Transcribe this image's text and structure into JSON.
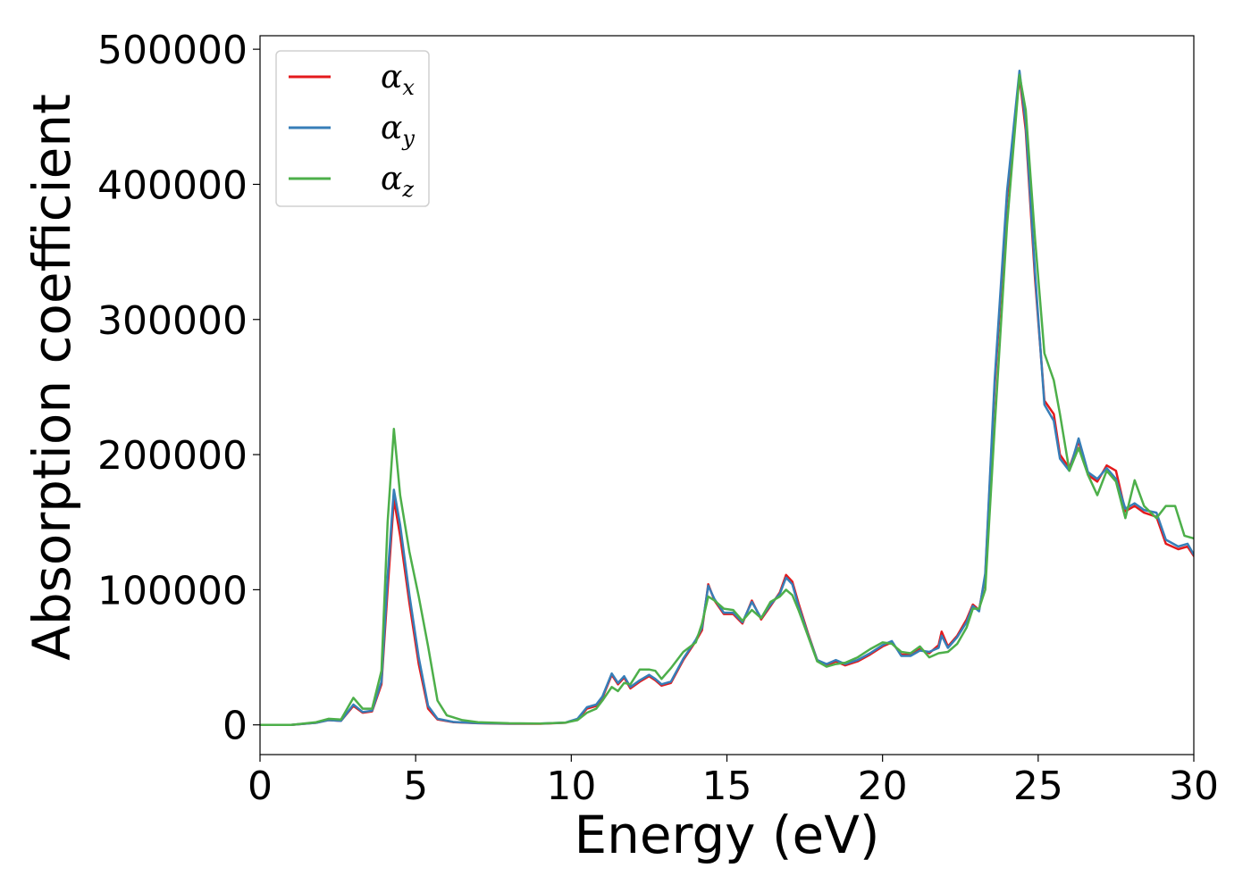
{
  "chart_data": {
    "type": "line",
    "title": "",
    "xlabel": "Energy (eV)",
    "ylabel": "Absorption coefficient",
    "xlim": [
      0,
      30
    ],
    "ylim": [
      -22000,
      510000
    ],
    "xticks": [
      0,
      5,
      10,
      15,
      20,
      25,
      30
    ],
    "yticks": [
      0,
      100000,
      200000,
      300000,
      400000,
      500000
    ],
    "grid": false,
    "legend": "top-left",
    "series": [
      {
        "name": "α",
        "subscript": "x",
        "color": "#e41a1c",
        "points": [
          [
            0,
            0
          ],
          [
            1,
            0
          ],
          [
            1.8,
            1500
          ],
          [
            2.2,
            3500
          ],
          [
            2.6,
            3000
          ],
          [
            3.0,
            14000
          ],
          [
            3.3,
            9000
          ],
          [
            3.6,
            10000
          ],
          [
            3.9,
            30000
          ],
          [
            4.1,
            100000
          ],
          [
            4.3,
            167000
          ],
          [
            4.5,
            140000
          ],
          [
            4.8,
            90000
          ],
          [
            5.1,
            45000
          ],
          [
            5.4,
            12000
          ],
          [
            5.7,
            4000
          ],
          [
            6.2,
            2000
          ],
          [
            7,
            1200
          ],
          [
            8,
            800
          ],
          [
            9,
            800
          ],
          [
            9.8,
            1500
          ],
          [
            10.2,
            4000
          ],
          [
            10.5,
            12000
          ],
          [
            10.8,
            14000
          ],
          [
            11.0,
            20000
          ],
          [
            11.3,
            37000
          ],
          [
            11.5,
            30000
          ],
          [
            11.7,
            35000
          ],
          [
            11.9,
            27000
          ],
          [
            12.2,
            32000
          ],
          [
            12.5,
            36000
          ],
          [
            12.7,
            33000
          ],
          [
            12.9,
            29000
          ],
          [
            13.2,
            31000
          ],
          [
            13.6,
            48000
          ],
          [
            14.0,
            62000
          ],
          [
            14.2,
            70000
          ],
          [
            14.4,
            104000
          ],
          [
            14.6,
            92000
          ],
          [
            14.9,
            82000
          ],
          [
            15.2,
            82000
          ],
          [
            15.5,
            75000
          ],
          [
            15.8,
            92000
          ],
          [
            16.1,
            78000
          ],
          [
            16.4,
            88000
          ],
          [
            16.7,
            98000
          ],
          [
            16.9,
            111000
          ],
          [
            17.1,
            106000
          ],
          [
            17.3,
            90000
          ],
          [
            17.6,
            68000
          ],
          [
            17.9,
            48000
          ],
          [
            18.2,
            44000
          ],
          [
            18.5,
            47000
          ],
          [
            18.8,
            44000
          ],
          [
            19.2,
            47000
          ],
          [
            19.6,
            52000
          ],
          [
            20.0,
            58000
          ],
          [
            20.3,
            61000
          ],
          [
            20.6,
            52000
          ],
          [
            20.9,
            52000
          ],
          [
            21.2,
            56000
          ],
          [
            21.5,
            53000
          ],
          [
            21.8,
            59000
          ],
          [
            21.9,
            69000
          ],
          [
            22.1,
            58000
          ],
          [
            22.4,
            66000
          ],
          [
            22.7,
            78000
          ],
          [
            22.9,
            89000
          ],
          [
            23.1,
            85000
          ],
          [
            23.3,
            110000
          ],
          [
            23.6,
            250000
          ],
          [
            24.0,
            390000
          ],
          [
            24.4,
            480000
          ],
          [
            24.6,
            440000
          ],
          [
            24.9,
            330000
          ],
          [
            25.2,
            240000
          ],
          [
            25.5,
            230000
          ],
          [
            25.7,
            200000
          ],
          [
            26.0,
            190000
          ],
          [
            26.3,
            210000
          ],
          [
            26.6,
            185000
          ],
          [
            26.9,
            180000
          ],
          [
            27.2,
            192000
          ],
          [
            27.5,
            188000
          ],
          [
            27.8,
            158000
          ],
          [
            28.1,
            162000
          ],
          [
            28.4,
            157000
          ],
          [
            28.8,
            154000
          ],
          [
            29.1,
            134000
          ],
          [
            29.5,
            130000
          ],
          [
            29.8,
            132000
          ],
          [
            30,
            125000
          ]
        ]
      },
      {
        "name": "α",
        "subscript": "y",
        "color": "#377eb8",
        "points": [
          [
            0,
            0
          ],
          [
            1,
            0
          ],
          [
            1.8,
            1500
          ],
          [
            2.2,
            3500
          ],
          [
            2.6,
            3000
          ],
          [
            3.0,
            15000
          ],
          [
            3.3,
            9500
          ],
          [
            3.6,
            10500
          ],
          [
            3.9,
            32000
          ],
          [
            4.1,
            110000
          ],
          [
            4.3,
            174000
          ],
          [
            4.5,
            148000
          ],
          [
            4.8,
            96000
          ],
          [
            5.1,
            50000
          ],
          [
            5.4,
            14000
          ],
          [
            5.7,
            4500
          ],
          [
            6.2,
            2200
          ],
          [
            7,
            1300
          ],
          [
            8,
            900
          ],
          [
            9,
            900
          ],
          [
            9.8,
            1600
          ],
          [
            10.2,
            4500
          ],
          [
            10.5,
            13000
          ],
          [
            10.8,
            15000
          ],
          [
            11.0,
            21000
          ],
          [
            11.3,
            38000
          ],
          [
            11.5,
            31000
          ],
          [
            11.7,
            36000
          ],
          [
            11.9,
            28000
          ],
          [
            12.2,
            33000
          ],
          [
            12.5,
            37000
          ],
          [
            12.7,
            34000
          ],
          [
            12.9,
            30000
          ],
          [
            13.2,
            32000
          ],
          [
            13.6,
            49000
          ],
          [
            14.0,
            63000
          ],
          [
            14.2,
            72000
          ],
          [
            14.4,
            103000
          ],
          [
            14.6,
            93000
          ],
          [
            14.9,
            83000
          ],
          [
            15.2,
            83000
          ],
          [
            15.5,
            76000
          ],
          [
            15.8,
            91000
          ],
          [
            16.1,
            79000
          ],
          [
            16.4,
            89000
          ],
          [
            16.7,
            97000
          ],
          [
            16.9,
            109000
          ],
          [
            17.1,
            104000
          ],
          [
            17.3,
            88000
          ],
          [
            17.6,
            67000
          ],
          [
            17.9,
            48000
          ],
          [
            18.2,
            45000
          ],
          [
            18.5,
            48000
          ],
          [
            18.8,
            45000
          ],
          [
            19.2,
            48000
          ],
          [
            19.6,
            53000
          ],
          [
            20.0,
            59000
          ],
          [
            20.3,
            62000
          ],
          [
            20.6,
            51000
          ],
          [
            20.9,
            51000
          ],
          [
            21.2,
            55000
          ],
          [
            21.5,
            54000
          ],
          [
            21.8,
            57000
          ],
          [
            21.9,
            66000
          ],
          [
            22.1,
            57000
          ],
          [
            22.4,
            65000
          ],
          [
            22.7,
            76000
          ],
          [
            22.9,
            88000
          ],
          [
            23.1,
            84000
          ],
          [
            23.3,
            112000
          ],
          [
            23.6,
            255000
          ],
          [
            24.0,
            395000
          ],
          [
            24.4,
            484000
          ],
          [
            24.6,
            445000
          ],
          [
            24.9,
            335000
          ],
          [
            25.2,
            237000
          ],
          [
            25.5,
            225000
          ],
          [
            25.7,
            197000
          ],
          [
            26.0,
            188000
          ],
          [
            26.3,
            212000
          ],
          [
            26.6,
            187000
          ],
          [
            26.9,
            182000
          ],
          [
            27.2,
            190000
          ],
          [
            27.5,
            182000
          ],
          [
            27.8,
            160000
          ],
          [
            28.1,
            164000
          ],
          [
            28.4,
            159000
          ],
          [
            28.8,
            157000
          ],
          [
            29.1,
            137000
          ],
          [
            29.5,
            132000
          ],
          [
            29.8,
            134000
          ],
          [
            30,
            126000
          ]
        ]
      },
      {
        "name": "α",
        "subscript": "z",
        "color": "#4daf4a",
        "points": [
          [
            0,
            0
          ],
          [
            1,
            0
          ],
          [
            1.8,
            2000
          ],
          [
            2.2,
            4500
          ],
          [
            2.6,
            4000
          ],
          [
            3.0,
            20000
          ],
          [
            3.3,
            12000
          ],
          [
            3.6,
            12000
          ],
          [
            3.9,
            40000
          ],
          [
            4.1,
            150000
          ],
          [
            4.3,
            219000
          ],
          [
            4.5,
            170000
          ],
          [
            4.8,
            128000
          ],
          [
            5.1,
            95000
          ],
          [
            5.4,
            58000
          ],
          [
            5.7,
            18000
          ],
          [
            6.0,
            7000
          ],
          [
            6.5,
            3500
          ],
          [
            7,
            2000
          ],
          [
            8,
            1200
          ],
          [
            9,
            1000
          ],
          [
            9.8,
            1600
          ],
          [
            10.2,
            3500
          ],
          [
            10.5,
            9000
          ],
          [
            10.8,
            12000
          ],
          [
            11.0,
            18000
          ],
          [
            11.3,
            28000
          ],
          [
            11.5,
            25000
          ],
          [
            11.7,
            31000
          ],
          [
            11.9,
            30000
          ],
          [
            12.2,
            41000
          ],
          [
            12.5,
            41000
          ],
          [
            12.7,
            40000
          ],
          [
            12.9,
            34000
          ],
          [
            13.2,
            42000
          ],
          [
            13.6,
            54000
          ],
          [
            14.0,
            61000
          ],
          [
            14.2,
            75000
          ],
          [
            14.4,
            95000
          ],
          [
            14.6,
            92000
          ],
          [
            14.9,
            86000
          ],
          [
            15.2,
            85000
          ],
          [
            15.5,
            77000
          ],
          [
            15.8,
            85000
          ],
          [
            16.1,
            79000
          ],
          [
            16.4,
            91000
          ],
          [
            16.7,
            95000
          ],
          [
            16.9,
            100000
          ],
          [
            17.1,
            96000
          ],
          [
            17.3,
            85000
          ],
          [
            17.6,
            66000
          ],
          [
            17.9,
            47000
          ],
          [
            18.2,
            43000
          ],
          [
            18.5,
            45000
          ],
          [
            18.8,
            46000
          ],
          [
            19.2,
            50000
          ],
          [
            19.6,
            56000
          ],
          [
            20.0,
            61000
          ],
          [
            20.3,
            60000
          ],
          [
            20.6,
            54000
          ],
          [
            20.9,
            53000
          ],
          [
            21.2,
            58000
          ],
          [
            21.5,
            50000
          ],
          [
            21.8,
            53000
          ],
          [
            22.1,
            54000
          ],
          [
            22.4,
            60000
          ],
          [
            22.7,
            72000
          ],
          [
            22.9,
            86000
          ],
          [
            23.1,
            86000
          ],
          [
            23.3,
            100000
          ],
          [
            23.6,
            220000
          ],
          [
            24.0,
            370000
          ],
          [
            24.4,
            481000
          ],
          [
            24.6,
            455000
          ],
          [
            24.9,
            360000
          ],
          [
            25.2,
            275000
          ],
          [
            25.5,
            255000
          ],
          [
            25.7,
            230000
          ],
          [
            26.0,
            188000
          ],
          [
            26.3,
            205000
          ],
          [
            26.6,
            185000
          ],
          [
            26.9,
            170000
          ],
          [
            27.2,
            188000
          ],
          [
            27.5,
            180000
          ],
          [
            27.8,
            153000
          ],
          [
            28.1,
            181000
          ],
          [
            28.4,
            162000
          ],
          [
            28.8,
            153000
          ],
          [
            29.1,
            162000
          ],
          [
            29.4,
            162000
          ],
          [
            29.7,
            140000
          ],
          [
            30,
            138000
          ]
        ]
      }
    ]
  }
}
